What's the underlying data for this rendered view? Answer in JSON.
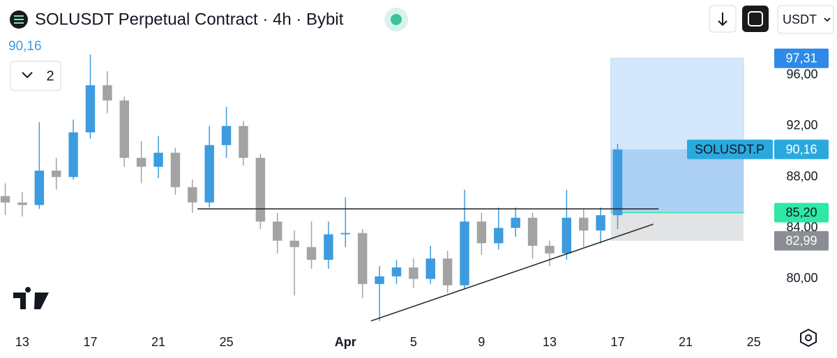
{
  "chart_data": {
    "type": "candlestick",
    "title": "SOLUSDT Perpetual Contract · 4h · Bybit",
    "last_price_label": "90,16",
    "indicator_count": 2,
    "currency": "USDT",
    "x": [
      -1,
      0,
      1,
      2,
      3,
      4,
      5,
      6,
      7,
      8,
      9,
      10,
      11,
      12,
      13,
      14,
      15,
      16,
      17,
      18,
      19,
      20,
      21,
      22,
      23,
      24,
      25,
      26,
      27,
      28,
      29,
      30,
      31,
      32,
      33,
      34,
      35
    ],
    "open": [
      86.5,
      86,
      85.8,
      88.5,
      88,
      91.5,
      95.2,
      94,
      89.5,
      88.8,
      89.9,
      87.2,
      86,
      90.5,
      92,
      89.5,
      84.5,
      83,
      82.5,
      81.5,
      83.5,
      83.6,
      79.6,
      80.2,
      80.9,
      80,
      81.6,
      79.5,
      84.5,
      82.8,
      84,
      84.8,
      82.6,
      82,
      84.8,
      83.8,
      85.0
    ],
    "high": [
      87.5,
      86.8,
      92.3,
      89.5,
      92.5,
      97.6,
      96.3,
      94.3,
      90.8,
      91.2,
      90.3,
      87.8,
      92.0,
      93.5,
      92.4,
      89.8,
      85.2,
      83.8,
      84.5,
      84.5,
      86.4,
      83.9,
      81.0,
      81.5,
      81.6,
      82.6,
      82.2,
      87.0,
      85.2,
      85.6,
      85.6,
      85.2,
      83.0,
      87.0,
      85.5,
      85.6,
      90.6
    ],
    "low": [
      85.0,
      84.9,
      85.5,
      87.0,
      87.8,
      91.0,
      93.0,
      88.8,
      87.5,
      87.9,
      86.6,
      85.2,
      85.6,
      89.5,
      88.9,
      83.9,
      82.0,
      78.7,
      80.8,
      80.8,
      82.5,
      78.5,
      76.7,
      79.6,
      79.3,
      79.6,
      78.9,
      79.2,
      81.9,
      82.3,
      83.3,
      81.6,
      81.0,
      81.5,
      82.5,
      82.8,
      83.9
    ],
    "close": [
      86,
      85.8,
      88.5,
      88,
      91.5,
      95.2,
      94,
      89.5,
      88.8,
      89.9,
      87.2,
      86,
      90.5,
      92,
      89.5,
      84.5,
      83,
      82.5,
      81.5,
      83.5,
      83.6,
      79.6,
      80.2,
      80.9,
      80,
      81.6,
      79.5,
      84.5,
      82.8,
      84,
      84.8,
      82.6,
      82,
      84.8,
      83.8,
      85.0,
      90.16
    ],
    "up_color": "#3d9be0",
    "down_color": "#a3a3a3",
    "xlim": [
      -1.31,
      44
    ],
    "ylim": [
      76.2,
      99.7
    ],
    "xticks": [
      {
        "value": 0,
        "label": "13"
      },
      {
        "value": 4,
        "label": "17"
      },
      {
        "value": 8,
        "label": "21"
      },
      {
        "value": 12,
        "label": "25"
      },
      {
        "value": 19,
        "label": "Apr"
      },
      {
        "value": 23,
        "label": "5"
      },
      {
        "value": 27,
        "label": "9"
      },
      {
        "value": 31,
        "label": "13"
      },
      {
        "value": 35,
        "label": "17"
      },
      {
        "value": 39,
        "label": "21"
      },
      {
        "value": 43,
        "label": "25"
      }
    ],
    "yticks": [
      {
        "value": 80,
        "label": "80,00"
      },
      {
        "value": 84,
        "label": "84,00"
      },
      {
        "value": 88,
        "label": "88,00"
      },
      {
        "value": 92,
        "label": "92,00"
      },
      {
        "value": 96,
        "label": "96,00"
      }
    ],
    "horizontal_line": {
      "value": 85.5,
      "x": [
        10.3,
        37.4
      ]
    },
    "trend_line": {
      "x": [
        20.5,
        37.1
      ],
      "y": [
        76.7,
        84.3
      ]
    },
    "position": {
      "x": [
        34.6,
        42.4
      ],
      "target": 97.31,
      "entry": 85.2,
      "stop": 82.99,
      "current": 90.16
    },
    "symbol_tag": "SOLUSDT.P",
    "price_tags": [
      {
        "value": 97.31,
        "label": "97,31",
        "color": "#2e8ae6"
      },
      {
        "value": 90.16,
        "label": "90,16",
        "color": "#2aa9df"
      },
      {
        "value": 85.2,
        "label": "85,20",
        "color": "#2ee8a5"
      },
      {
        "value": 82.99,
        "label": "82,99",
        "color": "#8a8d94"
      }
    ]
  }
}
